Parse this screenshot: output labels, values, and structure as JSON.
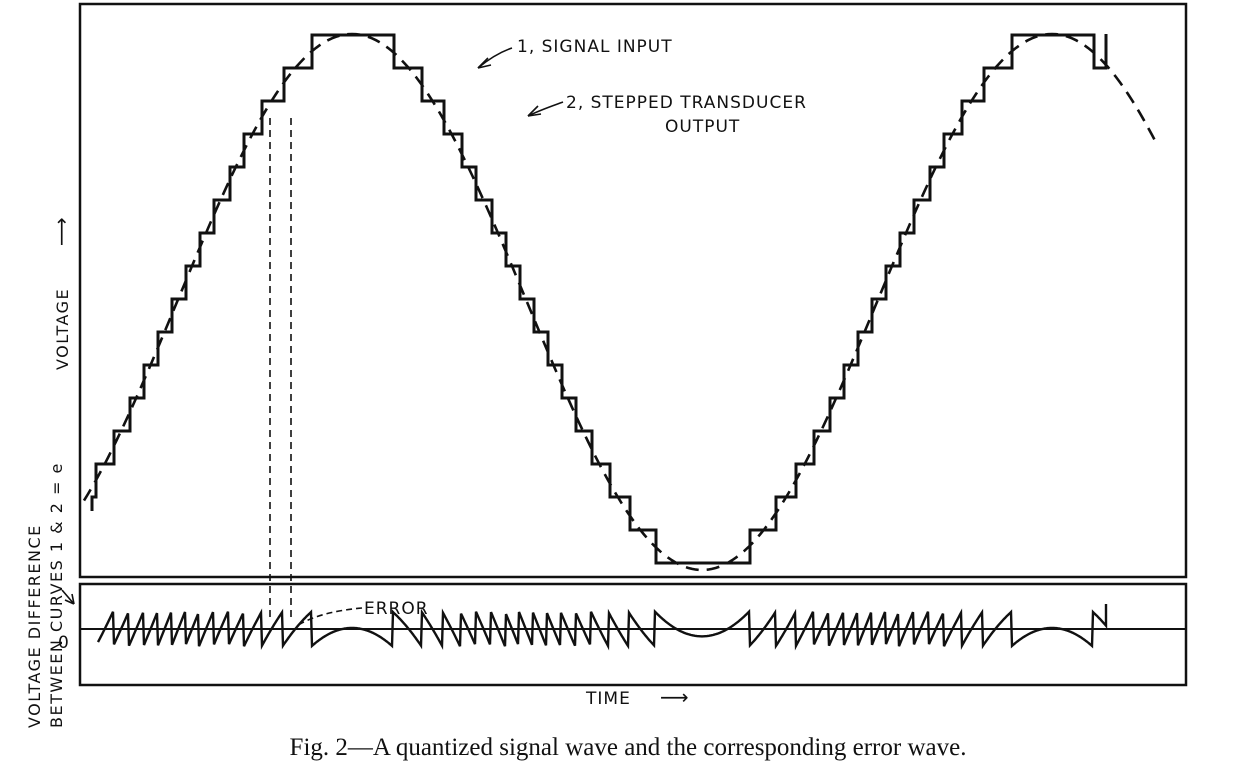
{
  "figure": {
    "caption": "Fig. 2—A quantized signal wave and the corresponding error wave.",
    "labels": {
      "signal_input": "1, SIGNAL INPUT",
      "stepped_output_line1": "2, STEPPED TRANSDUCER",
      "stepped_output_line2": "OUTPUT",
      "error": "ERROR",
      "time": "TIME",
      "time_arrow": "⟶",
      "voltage": "VOLTAGE",
      "voltage_arrow": "⟶",
      "diff_line1": "VOLTAGE DIFFERENCE",
      "diff_line2": "BETWEEN CURVES 1 & 2 = e",
      "zero": "0"
    },
    "colors": {
      "ink": "#111111",
      "background": "#ffffff"
    }
  }
}
